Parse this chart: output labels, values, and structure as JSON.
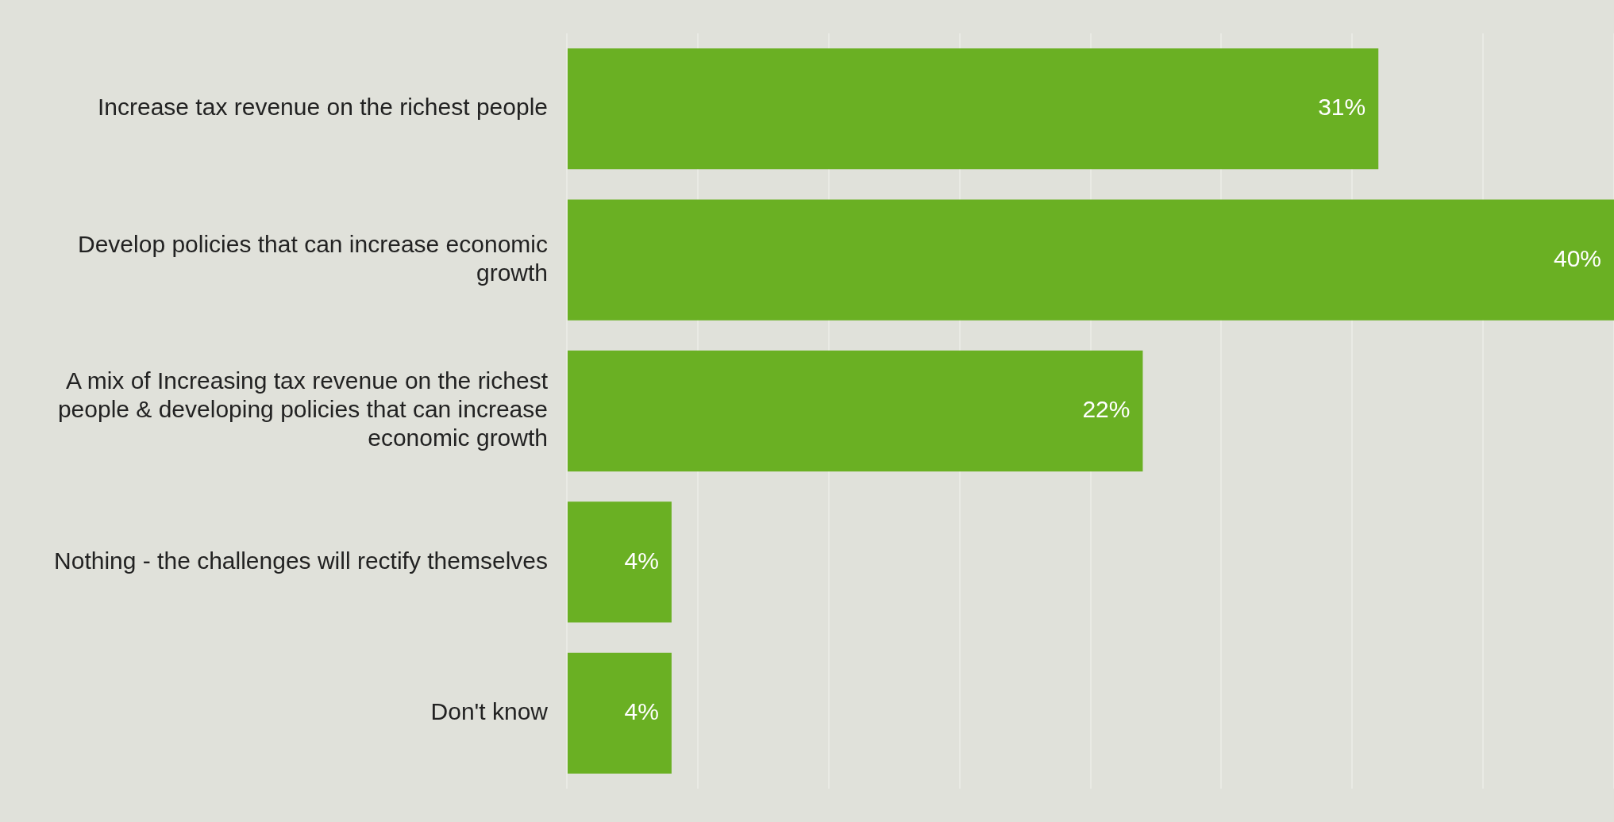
{
  "chart_data": {
    "type": "bar",
    "orientation": "horizontal",
    "categories": [
      "Increase tax revenue on the richest people",
      "Develop policies that can increase economic growth",
      "A mix of Increasing tax revenue on the richest people & developing policies that can increase economic growth",
      "Nothing - the challenges will rectify themselves",
      "Don't know"
    ],
    "values": [
      31,
      40,
      22,
      4,
      4
    ],
    "value_labels": [
      "31%",
      "40%",
      "22%",
      "4%",
      "4%"
    ],
    "color": "#6ab023",
    "xlim": [
      0,
      40
    ],
    "xticks": [
      {
        "value": 0,
        "label": null
      },
      {
        "value": 5,
        "label": null
      },
      {
        "value": 10,
        "label": null
      },
      {
        "value": 15,
        "label": null
      },
      {
        "value": 20,
        "label": null
      },
      {
        "value": 25,
        "label": null
      },
      {
        "value": 30,
        "label": null
      },
      {
        "value": 35,
        "label": null
      },
      {
        "value": 40,
        "label": null
      }
    ],
    "tick_labels": "y",
    "grid": "x"
  }
}
